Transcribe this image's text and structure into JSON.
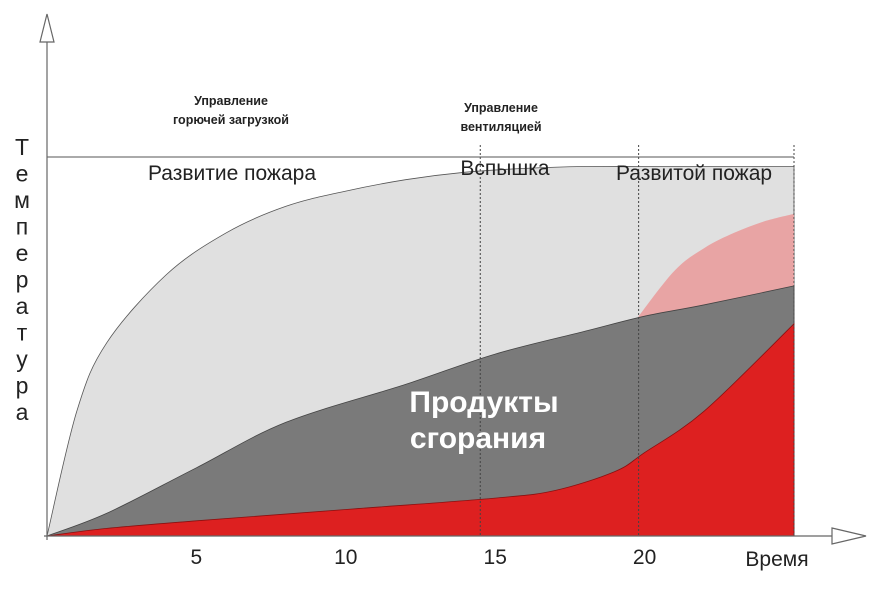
{
  "chart_data": {
    "type": "area",
    "ylabel": "Температура",
    "xlabel": "Время",
    "xticks": [
      5,
      10,
      15,
      20
    ],
    "xlim": [
      0,
      25
    ],
    "ylim": [
      0,
      100
    ],
    "phases": [
      {
        "label": "Развитие пожара"
      },
      {
        "label": "Вспышка"
      },
      {
        "label": "Развитой пожар"
      }
    ],
    "phase_boundaries": [
      14.5,
      19.8
    ],
    "control_labels": [
      {
        "line1": "Управление",
        "line2": "горючей загрузкой"
      },
      {
        "line1": "Управление",
        "line2": "вентиляцией"
      }
    ],
    "series": [
      {
        "label": "Продукты сгорания",
        "label_line1": "Продукты",
        "label_line2": "сгорания",
        "color": "#7a7a7a",
        "x": [
          0,
          2,
          5,
          8,
          12,
          15,
          18,
          20,
          22,
          25
        ],
        "y": [
          0,
          6,
          18,
          30,
          40,
          48,
          54,
          58,
          61,
          66
        ]
      }
    ],
    "unlabeled_areas": [
      {
        "color": "#e0e0e0",
        "x": [
          0,
          1,
          2,
          4,
          6,
          8,
          10,
          12,
          14,
          16,
          18,
          20,
          22,
          25
        ],
        "y": [
          0,
          33,
          51,
          69,
          80,
          87,
          91,
          94,
          96,
          97,
          97.5,
          97.5,
          97.5,
          97.5
        ]
      },
      {
        "color": "#e8a4a4",
        "x": [
          19.8,
          21,
          22,
          23,
          24,
          25
        ],
        "y": [
          58,
          70,
          76,
          80,
          83,
          85
        ]
      },
      {
        "color": "#dd2020",
        "x": [
          0,
          2,
          5,
          10,
          15,
          17,
          19,
          20,
          22,
          25
        ],
        "y": [
          0,
          2,
          4,
          7,
          10,
          12,
          17,
          22,
          33,
          56
        ]
      }
    ]
  }
}
